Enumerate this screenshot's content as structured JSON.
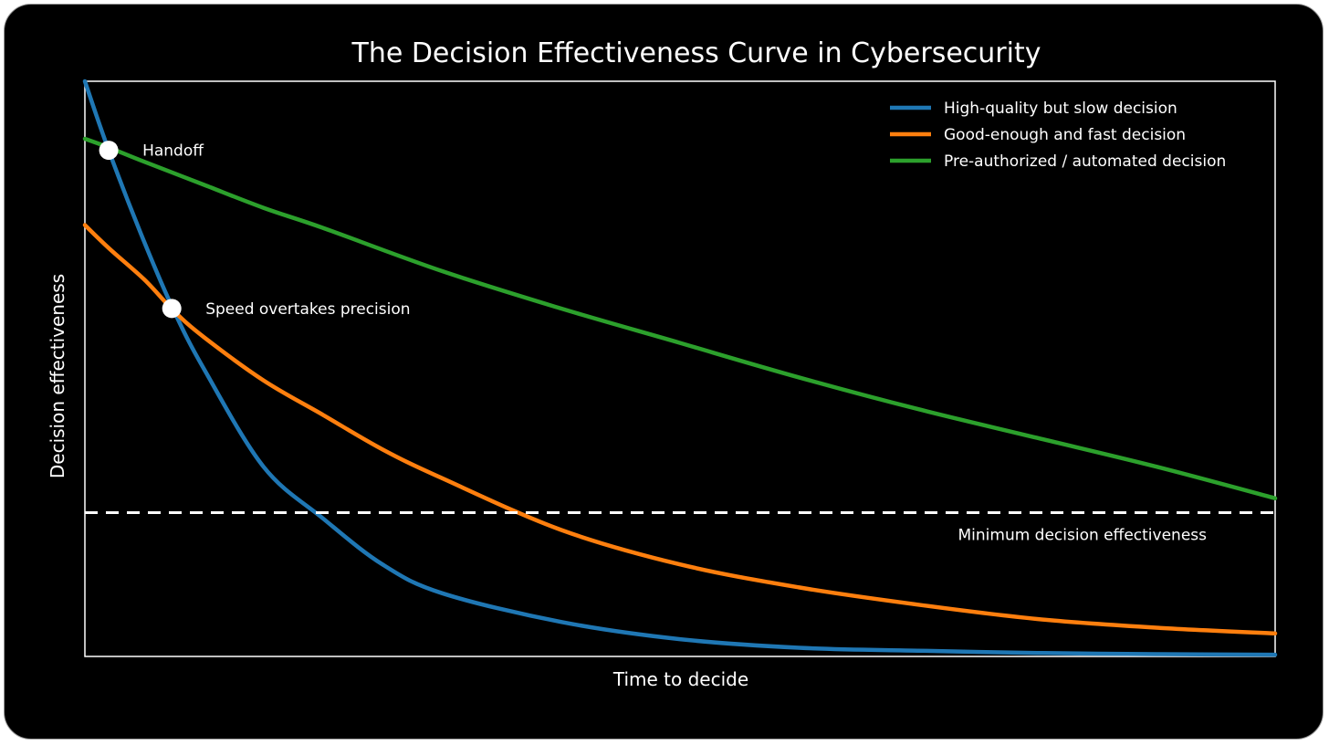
{
  "chart_data": {
    "type": "line",
    "title": "The Decision Effectiveness Curve in Cybersecurity",
    "xlabel": "Time to decide",
    "ylabel": "Decision effectiveness",
    "xlim": [
      0,
      1
    ],
    "ylim": [
      0,
      1
    ],
    "x_ticks_shown": false,
    "y_ticks_shown": false,
    "grid": false,
    "legend_position": "top-right",
    "series": [
      {
        "name": "High-quality but slow decision",
        "color": "#1f77b4",
        "x": [
          0,
          0.02,
          0.05,
          0.075,
          0.1,
          0.15,
          0.2,
          0.25,
          0.3,
          0.4,
          0.5,
          0.6,
          0.7,
          0.8,
          0.9,
          1.0
        ],
        "y": [
          1.0,
          0.88,
          0.72,
          0.6,
          0.5,
          0.33,
          0.24,
          0.16,
          0.11,
          0.06,
          0.03,
          0.015,
          0.01,
          0.006,
          0.004,
          0.003
        ]
      },
      {
        "name": "Good-enough and fast decision",
        "color": "#ff7f0e",
        "x": [
          0,
          0.02,
          0.05,
          0.075,
          0.1,
          0.15,
          0.2,
          0.25,
          0.3,
          0.4,
          0.5,
          0.6,
          0.7,
          0.8,
          0.9,
          1.0
        ],
        "y": [
          0.75,
          0.71,
          0.655,
          0.6,
          0.555,
          0.48,
          0.42,
          0.36,
          0.31,
          0.22,
          0.16,
          0.12,
          0.09,
          0.065,
          0.05,
          0.04
        ]
      },
      {
        "name": "Pre-authorized / automated decision",
        "color": "#2ca02c",
        "x": [
          0,
          0.02,
          0.05,
          0.1,
          0.15,
          0.2,
          0.3,
          0.4,
          0.5,
          0.6,
          0.7,
          0.8,
          0.9,
          1.0
        ],
        "y": [
          0.9,
          0.885,
          0.86,
          0.82,
          0.78,
          0.745,
          0.67,
          0.605,
          0.545,
          0.485,
          0.43,
          0.38,
          0.33,
          0.275
        ]
      }
    ],
    "threshold": {
      "label": "Minimum decision effectiveness",
      "y": 0.25,
      "style": "dashed",
      "color": "#ffffff"
    },
    "annotations": [
      {
        "text": "Handoff",
        "x": 0.02,
        "y": 0.88
      },
      {
        "text": "Speed overtakes precision",
        "x": 0.073,
        "y": 0.605
      }
    ]
  }
}
